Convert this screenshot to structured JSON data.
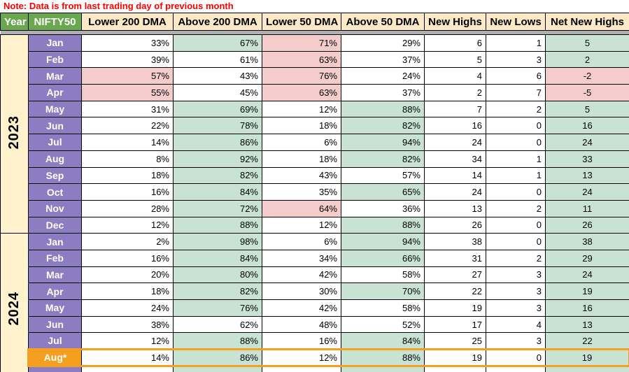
{
  "note": "Note: Data is from last trading day of previous month",
  "header": {
    "columns": [
      {
        "label": "Year",
        "bg": "green"
      },
      {
        "label": "NIFTY50",
        "bg": "green"
      },
      {
        "label": "Lower 200 DMA",
        "bg": "cream"
      },
      {
        "label": "Above 200 DMA",
        "bg": "cream"
      },
      {
        "label": "Lower 50 DMA",
        "bg": "cream"
      },
      {
        "label": "Above 50 DMA",
        "bg": "cream"
      },
      {
        "label": "New Highs",
        "bg": "cream"
      },
      {
        "label": "New Lows",
        "bg": "cream"
      },
      {
        "label": "Net New Highs",
        "bg": "cream"
      }
    ]
  },
  "colors": {
    "note_red": "#ff0000",
    "header_green": "#6aa84f",
    "header_cream": "#fde9c5",
    "year_column_cream": "#fff2cc",
    "month_purple": "#8e7cc3",
    "positive_green": "#c8e3d3",
    "negative_pink": "#f4cccc",
    "highlight_orange": "#f59f20",
    "divider_gray": "#b0b0b0"
  },
  "table": {
    "sections": [
      {
        "year": "2023",
        "rowspan": 12,
        "rows": [
          {
            "month": "Jan",
            "cells": [
              [
                "33%",
                "plain"
              ],
              [
                "67%",
                "green"
              ],
              [
                "71%",
                "pink"
              ],
              [
                "29%",
                "plain"
              ],
              [
                "6",
                "plain"
              ],
              [
                "1",
                "plain"
              ],
              [
                "5",
                "green"
              ]
            ]
          },
          {
            "month": "Feb",
            "cells": [
              [
                "39%",
                "plain"
              ],
              [
                "61%",
                "plain"
              ],
              [
                "63%",
                "pink"
              ],
              [
                "37%",
                "plain"
              ],
              [
                "5",
                "plain"
              ],
              [
                "3",
                "plain"
              ],
              [
                "2",
                "green"
              ]
            ]
          },
          {
            "month": "Mar",
            "cells": [
              [
                "57%",
                "pink"
              ],
              [
                "43%",
                "plain"
              ],
              [
                "76%",
                "pink"
              ],
              [
                "24%",
                "plain"
              ],
              [
                "4",
                "plain"
              ],
              [
                "6",
                "plain"
              ],
              [
                "-2",
                "pink"
              ]
            ]
          },
          {
            "month": "Apr",
            "cells": [
              [
                "55%",
                "pink"
              ],
              [
                "45%",
                "plain"
              ],
              [
                "63%",
                "pink"
              ],
              [
                "37%",
                "plain"
              ],
              [
                "2",
                "plain"
              ],
              [
                "7",
                "plain"
              ],
              [
                "-5",
                "pink"
              ]
            ]
          },
          {
            "month": "May",
            "cells": [
              [
                "31%",
                "plain"
              ],
              [
                "69%",
                "green"
              ],
              [
                "12%",
                "plain"
              ],
              [
                "88%",
                "green"
              ],
              [
                "7",
                "plain"
              ],
              [
                "2",
                "plain"
              ],
              [
                "5",
                "green"
              ]
            ]
          },
          {
            "month": "Jun",
            "cells": [
              [
                "22%",
                "plain"
              ],
              [
                "78%",
                "green"
              ],
              [
                "18%",
                "plain"
              ],
              [
                "82%",
                "green"
              ],
              [
                "16",
                "plain"
              ],
              [
                "0",
                "plain"
              ],
              [
                "16",
                "green"
              ]
            ]
          },
          {
            "month": "Jul",
            "cells": [
              [
                "14%",
                "plain"
              ],
              [
                "86%",
                "green"
              ],
              [
                "6%",
                "plain"
              ],
              [
                "94%",
                "green"
              ],
              [
                "24",
                "plain"
              ],
              [
                "0",
                "plain"
              ],
              [
                "24",
                "green"
              ]
            ]
          },
          {
            "month": "Aug",
            "cells": [
              [
                "8%",
                "plain"
              ],
              [
                "92%",
                "green"
              ],
              [
                "18%",
                "plain"
              ],
              [
                "82%",
                "green"
              ],
              [
                "34",
                "plain"
              ],
              [
                "1",
                "plain"
              ],
              [
                "33",
                "green"
              ]
            ]
          },
          {
            "month": "Sep",
            "cells": [
              [
                "18%",
                "plain"
              ],
              [
                "82%",
                "green"
              ],
              [
                "43%",
                "plain"
              ],
              [
                "57%",
                "plain"
              ],
              [
                "14",
                "plain"
              ],
              [
                "1",
                "plain"
              ],
              [
                "13",
                "green"
              ]
            ]
          },
          {
            "month": "Oct",
            "cells": [
              [
                "16%",
                "plain"
              ],
              [
                "84%",
                "green"
              ],
              [
                "35%",
                "plain"
              ],
              [
                "65%",
                "green"
              ],
              [
                "24",
                "plain"
              ],
              [
                "0",
                "plain"
              ],
              [
                "24",
                "green"
              ]
            ]
          },
          {
            "month": "Nov",
            "cells": [
              [
                "28%",
                "plain"
              ],
              [
                "72%",
                "green"
              ],
              [
                "64%",
                "pink"
              ],
              [
                "36%",
                "plain"
              ],
              [
                "13",
                "plain"
              ],
              [
                "2",
                "plain"
              ],
              [
                "11",
                "green"
              ]
            ]
          },
          {
            "month": "Dec",
            "cells": [
              [
                "12%",
                "plain"
              ],
              [
                "88%",
                "green"
              ],
              [
                "12%",
                "plain"
              ],
              [
                "88%",
                "green"
              ],
              [
                "26",
                "plain"
              ],
              [
                "0",
                "plain"
              ],
              [
                "26",
                "green"
              ]
            ]
          }
        ]
      },
      {
        "year": "2024",
        "rowspan": 9,
        "rows": [
          {
            "month": "Jan",
            "cells": [
              [
                "2%",
                "plain"
              ],
              [
                "98%",
                "green"
              ],
              [
                "6%",
                "plain"
              ],
              [
                "94%",
                "green"
              ],
              [
                "38",
                "plain"
              ],
              [
                "0",
                "plain"
              ],
              [
                "38",
                "green"
              ]
            ]
          },
          {
            "month": "Feb",
            "cells": [
              [
                "16%",
                "plain"
              ],
              [
                "84%",
                "green"
              ],
              [
                "34%",
                "plain"
              ],
              [
                "66%",
                "green"
              ],
              [
                "31",
                "plain"
              ],
              [
                "2",
                "plain"
              ],
              [
                "29",
                "green"
              ]
            ]
          },
          {
            "month": "Mar",
            "cells": [
              [
                "20%",
                "plain"
              ],
              [
                "80%",
                "green"
              ],
              [
                "42%",
                "plain"
              ],
              [
                "58%",
                "plain"
              ],
              [
                "27",
                "plain"
              ],
              [
                "3",
                "plain"
              ],
              [
                "24",
                "green"
              ]
            ]
          },
          {
            "month": "Apr",
            "cells": [
              [
                "18%",
                "plain"
              ],
              [
                "82%",
                "green"
              ],
              [
                "30%",
                "plain"
              ],
              [
                "70%",
                "green"
              ],
              [
                "22",
                "plain"
              ],
              [
                "3",
                "plain"
              ],
              [
                "19",
                "green"
              ]
            ]
          },
          {
            "month": "May",
            "cells": [
              [
                "24%",
                "plain"
              ],
              [
                "76%",
                "green"
              ],
              [
                "42%",
                "plain"
              ],
              [
                "58%",
                "plain"
              ],
              [
                "19",
                "plain"
              ],
              [
                "3",
                "plain"
              ],
              [
                "16",
                "green"
              ]
            ]
          },
          {
            "month": "Jun",
            "cells": [
              [
                "38%",
                "plain"
              ],
              [
                "62%",
                "plain"
              ],
              [
                "48%",
                "plain"
              ],
              [
                "52%",
                "plain"
              ],
              [
                "17",
                "plain"
              ],
              [
                "4",
                "plain"
              ],
              [
                "13",
                "green"
              ]
            ]
          },
          {
            "month": "Jul",
            "cells": [
              [
                "12%",
                "plain"
              ],
              [
                "88%",
                "green"
              ],
              [
                "16%",
                "plain"
              ],
              [
                "84%",
                "green"
              ],
              [
                "25",
                "plain"
              ],
              [
                "3",
                "plain"
              ],
              [
                "22",
                "green"
              ]
            ]
          },
          {
            "month": "Aug*",
            "highlight": true,
            "cells": [
              [
                "14%",
                "plain"
              ],
              [
                "86%",
                "green"
              ],
              [
                "12%",
                "plain"
              ],
              [
                "88%",
                "green"
              ],
              [
                "19",
                "plain"
              ],
              [
                "0",
                "plain"
              ],
              [
                "19",
                "green"
              ]
            ]
          },
          {
            "month": "",
            "partial": true,
            "cells": [
              [
                "",
                "plain"
              ],
              [
                "",
                "green"
              ],
              [
                "",
                "plain"
              ],
              [
                "",
                "green"
              ],
              [
                "",
                "plain"
              ],
              [
                "",
                "plain"
              ],
              [
                "",
                "green"
              ]
            ]
          }
        ]
      }
    ]
  }
}
